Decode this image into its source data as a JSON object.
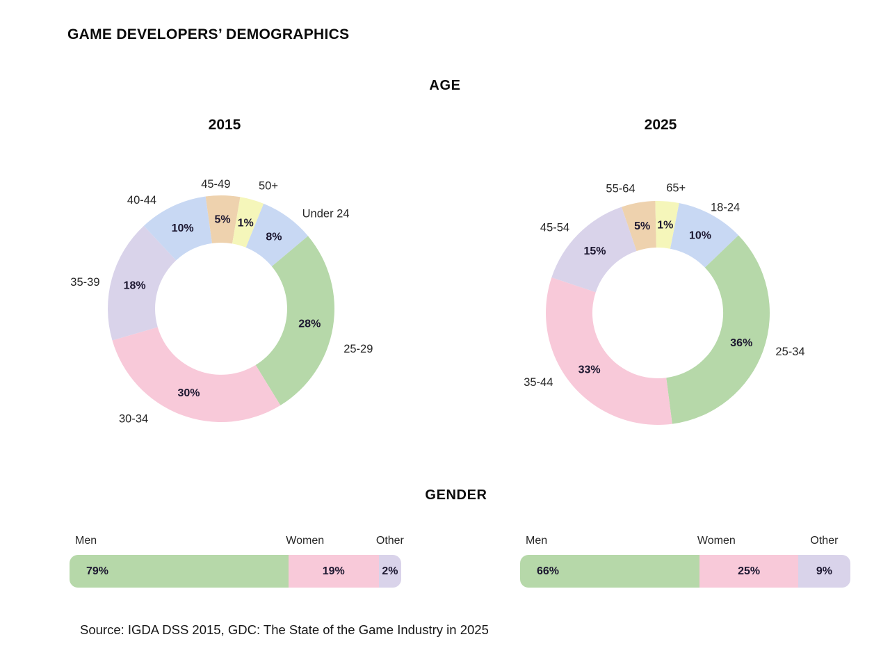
{
  "title": "GAME DEVELOPERS’ DEMOGRAPHICS",
  "sections": {
    "age": {
      "heading": "AGE"
    },
    "gender": {
      "heading": "GENDER"
    }
  },
  "chart_data": [
    {
      "type": "pie",
      "subtype": "donut",
      "group": "AGE",
      "title": "2015",
      "unit": "%",
      "categories": [
        "Under 24",
        "25-29",
        "30-34",
        "35-39",
        "40-44",
        "45-49",
        "50+"
      ],
      "values": [
        8,
        28,
        30,
        18,
        10,
        5,
        1
      ],
      "colors": [
        "blue",
        "green",
        "pink",
        "lavender",
        "blue",
        "tan",
        "yellow"
      ]
    },
    {
      "type": "pie",
      "subtype": "donut",
      "group": "AGE",
      "title": "2025",
      "unit": "%",
      "categories": [
        "18-24",
        "25-34",
        "35-44",
        "45-54",
        "55-64",
        "65+"
      ],
      "values": [
        10,
        36,
        33,
        15,
        5,
        1
      ],
      "colors": [
        "blue",
        "green",
        "pink",
        "lavender",
        "tan",
        "yellow"
      ]
    },
    {
      "type": "bar",
      "subtype": "stacked-horizontal",
      "group": "GENDER",
      "year": "2015",
      "unit": "%",
      "categories": [
        "Men",
        "Women",
        "Other"
      ],
      "values": [
        79,
        19,
        2
      ],
      "colors": [
        "green",
        "pink",
        "lavender"
      ]
    },
    {
      "type": "bar",
      "subtype": "stacked-horizontal",
      "group": "GENDER",
      "year": "2025",
      "unit": "%",
      "categories": [
        "Men",
        "Women",
        "Other"
      ],
      "values": [
        66,
        25,
        9
      ],
      "colors": [
        "green",
        "pink",
        "lavender"
      ]
    }
  ],
  "source": "Source: IGDA DSS 2015, GDC: The State of the Game Industry in 2025",
  "colors": {
    "green": "#b6d8a9",
    "pink": "#f8c9d9",
    "lavender": "#d9d3ea",
    "blue": "#c8d8f3",
    "tan": "#eed2ae",
    "yellow": "#f5f6ba",
    "percent_text": "#1c1730",
    "label_text": "#262626",
    "heading_text": "#0b0b0b",
    "background": "#ffffff"
  }
}
